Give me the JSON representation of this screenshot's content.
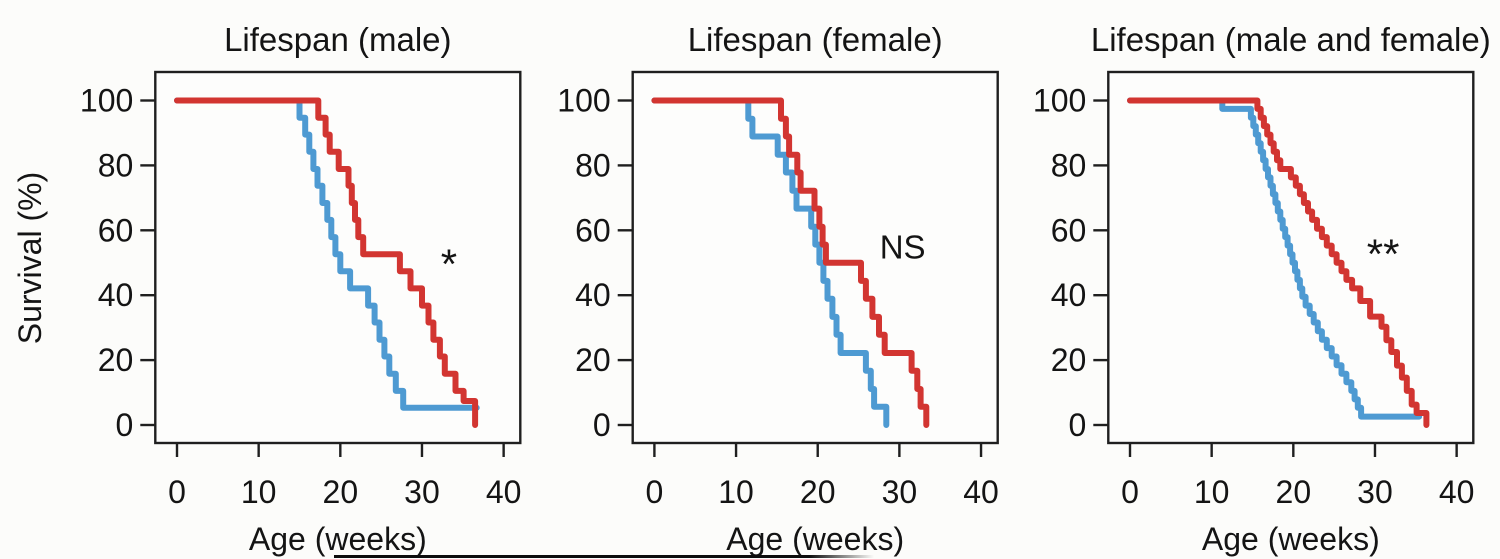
{
  "figure": {
    "ylabel": "Survival (%)",
    "background_color": "#fcfcfa",
    "text_color": "#141414",
    "blue_color": "#4e9ad2",
    "red_color": "#d23531"
  },
  "chart_data": [
    {
      "type": "line",
      "subtype": "kaplan-meier-step",
      "title": "Lifespan (male)",
      "xlabel": "Age (weeks)",
      "ylabel": "Survival (%)",
      "xlim": [
        0,
        40
      ],
      "ylim": [
        0,
        100
      ],
      "xticks": [
        0,
        10,
        20,
        30,
        40
      ],
      "yticks": [
        0,
        20,
        40,
        60,
        80,
        100
      ],
      "grid": false,
      "legend": "none",
      "annotation": {
        "text": "*",
        "week": 33.3,
        "percent": 54
      },
      "series": [
        {
          "name": "blue",
          "color": "#4e9ad2",
          "start": [
            0,
            100
          ],
          "events": [
            [
              15,
              94.7
            ],
            [
              15.7,
              89.5
            ],
            [
              16.2,
              84.2
            ],
            [
              16.7,
              78.9
            ],
            [
              17.2,
              73.7
            ],
            [
              17.8,
              68.4
            ],
            [
              18.4,
              63.2
            ],
            [
              18.9,
              57.9
            ],
            [
              19.4,
              52.6
            ],
            [
              20,
              47.4
            ],
            [
              21.2,
              42.1
            ],
            [
              23.4,
              36.8
            ],
            [
              24.2,
              31.6
            ],
            [
              24.8,
              26.3
            ],
            [
              25.4,
              21.1
            ],
            [
              26,
              15.8
            ],
            [
              26.8,
              10.5
            ],
            [
              27.7,
              5.3
            ]
          ],
          "end": 36.7
        },
        {
          "name": "red",
          "color": "#d23531",
          "start": [
            0,
            100
          ],
          "events": [
            [
              17.3,
              94.7
            ],
            [
              18.2,
              89.5
            ],
            [
              18.7,
              84.2
            ],
            [
              19.8,
              78.9
            ],
            [
              21,
              73.7
            ],
            [
              21.4,
              68.4
            ],
            [
              21.8,
              63.2
            ],
            [
              22.2,
              57.9
            ],
            [
              22.8,
              52.6
            ],
            [
              27.3,
              47.4
            ],
            [
              28.6,
              42.1
            ],
            [
              30,
              36.8
            ],
            [
              30.8,
              31.6
            ],
            [
              31.4,
              26.3
            ],
            [
              32.2,
              21.1
            ],
            [
              32.8,
              15.8
            ],
            [
              34.1,
              10.5
            ],
            [
              35.1,
              7.4
            ],
            [
              36.5,
              0
            ]
          ],
          "end": 36.5
        }
      ]
    },
    {
      "type": "line",
      "subtype": "kaplan-meier-step",
      "title": "Lifespan (female)",
      "xlabel": "Age (weeks)",
      "ylabel": "Survival (%)",
      "xlim": [
        0,
        40
      ],
      "ylim": [
        0,
        100
      ],
      "xticks": [
        0,
        10,
        20,
        30,
        40
      ],
      "yticks": [
        0,
        20,
        40,
        60,
        80,
        100
      ],
      "grid": false,
      "legend": "none",
      "annotation": {
        "text": "NS",
        "week": 30.4,
        "percent": 55
      },
      "series": [
        {
          "name": "blue",
          "color": "#4e9ad2",
          "start": [
            0,
            100
          ],
          "events": [
            [
              11.5,
              94.4
            ],
            [
              12,
              88.9
            ],
            [
              15.1,
              83.3
            ],
            [
              16.1,
              77.8
            ],
            [
              16.9,
              72.2
            ],
            [
              17.4,
              66.7
            ],
            [
              19.2,
              61.1
            ],
            [
              19.7,
              55.6
            ],
            [
              20.2,
              50
            ],
            [
              20.7,
              44.4
            ],
            [
              21.2,
              38.9
            ],
            [
              21.8,
              33.3
            ],
            [
              22.3,
              27.8
            ],
            [
              22.8,
              22.2
            ],
            [
              25.9,
              16.7
            ],
            [
              26.5,
              11.1
            ],
            [
              26.9,
              5.6
            ],
            [
              28.4,
              0
            ]
          ],
          "end": 28.4
        },
        {
          "name": "red",
          "color": "#d23531",
          "start": [
            0,
            100
          ],
          "events": [
            [
              15.5,
              94.4
            ],
            [
              16.1,
              88.9
            ],
            [
              16.5,
              83.3
            ],
            [
              17.5,
              77.8
            ],
            [
              17.9,
              72.2
            ],
            [
              19.6,
              66.7
            ],
            [
              20.2,
              61.1
            ],
            [
              20.6,
              55.6
            ],
            [
              21,
              50
            ],
            [
              25.3,
              44.4
            ],
            [
              25.9,
              38.9
            ],
            [
              26.7,
              33.3
            ],
            [
              27.5,
              27.8
            ],
            [
              28.2,
              22.2
            ],
            [
              31.5,
              16.7
            ],
            [
              32.2,
              11.1
            ],
            [
              32.6,
              5.6
            ],
            [
              33.3,
              0
            ]
          ],
          "end": 33.3
        }
      ]
    },
    {
      "type": "line",
      "subtype": "kaplan-meier-step",
      "title": "Lifespan (male and female)",
      "xlabel": "Age (weeks)",
      "ylabel": "Survival (%)",
      "xlim": [
        0,
        40
      ],
      "ylim": [
        0,
        100
      ],
      "xticks": [
        0,
        10,
        20,
        30,
        40
      ],
      "yticks": [
        0,
        20,
        40,
        60,
        80,
        100
      ],
      "grid": false,
      "legend": "none",
      "annotation": {
        "text": "**",
        "week": 31.0,
        "percent": 57
      },
      "series": [
        {
          "name": "blue",
          "color": "#4e9ad2",
          "start": [
            0,
            100
          ],
          "events": [
            [
              11.3,
              97.4
            ],
            [
              14.8,
              94.7
            ],
            [
              15.1,
              92.1
            ],
            [
              15.4,
              89.5
            ],
            [
              15.7,
              86.8
            ],
            [
              16,
              84.2
            ],
            [
              16.3,
              81.6
            ],
            [
              16.6,
              78.9
            ],
            [
              16.9,
              76.3
            ],
            [
              17.2,
              73.7
            ],
            [
              17.5,
              71.1
            ],
            [
              17.8,
              68.4
            ],
            [
              18.1,
              65.8
            ],
            [
              18.4,
              63.2
            ],
            [
              18.7,
              60.5
            ],
            [
              19,
              57.9
            ],
            [
              19.3,
              55.3
            ],
            [
              19.6,
              52.6
            ],
            [
              19.9,
              50
            ],
            [
              20.2,
              47.4
            ],
            [
              20.5,
              44.7
            ],
            [
              20.8,
              42.1
            ],
            [
              21.1,
              39.5
            ],
            [
              21.5,
              36.8
            ],
            [
              22,
              34.2
            ],
            [
              22.5,
              31.6
            ],
            [
              23,
              28.9
            ],
            [
              23.5,
              26.3
            ],
            [
              24.1,
              23.7
            ],
            [
              24.7,
              21.1
            ],
            [
              25.3,
              18.4
            ],
            [
              25.9,
              15.8
            ],
            [
              26.5,
              13.2
            ],
            [
              27.1,
              10.5
            ],
            [
              27.5,
              7.9
            ],
            [
              27.9,
              5.3
            ],
            [
              28.3,
              2.6
            ]
          ],
          "end": 35.4
        },
        {
          "name": "red",
          "color": "#d23531",
          "start": [
            0,
            100
          ],
          "events": [
            [
              15.6,
              97.4
            ],
            [
              16,
              94.7
            ],
            [
              16.4,
              92.1
            ],
            [
              16.8,
              89.5
            ],
            [
              17.2,
              86.8
            ],
            [
              17.6,
              84.2
            ],
            [
              18,
              81.6
            ],
            [
              18.4,
              78.9
            ],
            [
              19.7,
              76.3
            ],
            [
              20.3,
              73.7
            ],
            [
              20.8,
              71.1
            ],
            [
              21.3,
              68.4
            ],
            [
              21.8,
              65.8
            ],
            [
              22.3,
              63.2
            ],
            [
              22.9,
              60.5
            ],
            [
              23.5,
              57.9
            ],
            [
              24.1,
              55.3
            ],
            [
              24.7,
              52.6
            ],
            [
              25.3,
              50
            ],
            [
              25.9,
              47.4
            ],
            [
              26.5,
              44.7
            ],
            [
              27.2,
              42.1
            ],
            [
              28.2,
              38.2
            ],
            [
              29.4,
              33.4
            ],
            [
              30.8,
              30.3
            ],
            [
              31.4,
              26.1
            ],
            [
              32,
              22.5
            ],
            [
              32.7,
              18.3
            ],
            [
              33.3,
              14.6
            ],
            [
              33.9,
              10.5
            ],
            [
              34.5,
              6.3
            ],
            [
              35.1,
              3.7
            ],
            [
              36.3,
              0
            ]
          ],
          "end": 36.3
        }
      ]
    }
  ]
}
